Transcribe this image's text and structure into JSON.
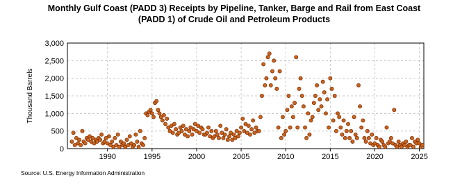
{
  "chart_data": {
    "type": "scatter",
    "title": "Monthly Gulf Coast (PADD 3) Receipts by Pipeline, Tanker, Barge and Rail from East Coast",
    "subtitle": "(PADD 1) of Crude Oil and Petroleum Products",
    "ylabel": "Thousand Barrels",
    "source": "Source: U.S. Energy Information Administration",
    "xlim": [
      1985.5,
      2025.5
    ],
    "xticks": [
      1990,
      1995,
      2000,
      2005,
      2010,
      2015,
      2020,
      2025
    ],
    "ylim": [
      0,
      3000
    ],
    "yticks": [
      {
        "value": 0,
        "label": "0"
      },
      {
        "value": 500,
        "label": "500"
      },
      {
        "value": 1000,
        "label": "1,000"
      },
      {
        "value": 1500,
        "label": "1,500"
      },
      {
        "value": 2000,
        "label": "2,000"
      },
      {
        "value": 2500,
        "label": "2,500"
      },
      {
        "value": 3000,
        "label": "3,000"
      }
    ],
    "grid": true,
    "color": "#c8641e",
    "x": [
      1986,
      1986.17,
      1986.33,
      1986.5,
      1986.67,
      1986.83,
      1987,
      1987.17,
      1987.33,
      1987.5,
      1987.67,
      1987.83,
      1988,
      1988.17,
      1988.33,
      1988.5,
      1988.67,
      1988.83,
      1989,
      1989.17,
      1989.33,
      1989.5,
      1989.67,
      1989.83,
      1990,
      1990.17,
      1990.33,
      1990.5,
      1990.67,
      1990.83,
      1991,
      1991.17,
      1991.33,
      1991.5,
      1991.67,
      1991.83,
      1992,
      1992.17,
      1992.33,
      1992.5,
      1992.67,
      1992.83,
      1993,
      1993.17,
      1993.33,
      1993.5,
      1993.67,
      1993.83,
      1994,
      1994.17,
      1994.33,
      1994.5,
      1994.67,
      1994.83,
      1995,
      1995.17,
      1995.33,
      1995.5,
      1995.67,
      1995.83,
      1996,
      1996.17,
      1996.33,
      1996.5,
      1996.67,
      1996.83,
      1997,
      1997.17,
      1997.33,
      1997.5,
      1997.67,
      1997.83,
      1998,
      1998.17,
      1998.33,
      1998.5,
      1998.67,
      1998.83,
      1999,
      1999.17,
      1999.33,
      1999.5,
      1999.67,
      1999.83,
      2000,
      2000.17,
      2000.33,
      2000.5,
      2000.67,
      2000.83,
      2001,
      2001.17,
      2001.33,
      2001.5,
      2001.67,
      2001.83,
      2002,
      2002.17,
      2002.33,
      2002.5,
      2002.67,
      2002.83,
      2003,
      2003.17,
      2003.33,
      2003.5,
      2003.67,
      2003.83,
      2004,
      2004.17,
      2004.33,
      2004.5,
      2004.67,
      2004.83,
      2005,
      2005.17,
      2005.33,
      2005.5,
      2005.67,
      2005.83,
      2006,
      2006.17,
      2006.33,
      2006.5,
      2006.67,
      2006.83,
      2007,
      2007.17,
      2007.33,
      2007.5,
      2007.67,
      2007.83,
      2008,
      2008.17,
      2008.33,
      2008.5,
      2008.67,
      2008.83,
      2009,
      2009.17,
      2009.33,
      2009.5,
      2009.67,
      2009.83,
      2010,
      2010.17,
      2010.33,
      2010.5,
      2010.67,
      2010.83,
      2011,
      2011.17,
      2011.33,
      2011.5,
      2011.67,
      2011.83,
      2012,
      2012.17,
      2012.33,
      2012.5,
      2012.67,
      2012.83,
      2013,
      2013.17,
      2013.33,
      2013.5,
      2013.67,
      2013.83,
      2014,
      2014.17,
      2014.33,
      2014.5,
      2014.67,
      2014.83,
      2015,
      2015.17,
      2015.33,
      2015.5,
      2015.67,
      2015.83,
      2016,
      2016.17,
      2016.33,
      2016.5,
      2016.67,
      2016.83,
      2017,
      2017.17,
      2017.33,
      2017.5,
      2017.67,
      2017.83,
      2018,
      2018.17,
      2018.33,
      2018.5,
      2018.67,
      2018.83,
      2019,
      2019.17,
      2019.33,
      2019.5,
      2019.67,
      2019.83,
      2020,
      2020.17,
      2020.33,
      2020.5,
      2020.67,
      2020.83,
      2021,
      2021.17,
      2021.33,
      2021.5,
      2021.67,
      2021.83,
      2022,
      2022.17,
      2022.33,
      2022.5,
      2022.67,
      2022.83,
      2023,
      2023.17,
      2023.33,
      2023.5,
      2023.67,
      2023.83,
      2024,
      2024.17,
      2024.33,
      2024.5,
      2024.67,
      2024.83,
      2025,
      2025.17,
      2025.33
    ],
    "values": [
      200,
      450,
      100,
      300,
      150,
      250,
      100,
      500,
      200,
      150,
      300,
      250,
      350,
      200,
      300,
      150,
      250,
      200,
      300,
      250,
      400,
      150,
      200,
      300,
      150,
      350,
      100,
      200,
      50,
      300,
      100,
      400,
      50,
      200,
      100,
      150,
      50,
      250,
      100,
      350,
      150,
      50,
      100,
      400,
      200,
      50,
      500,
      150,
      100,
      300,
      1000,
      950,
      1050,
      1100,
      1000,
      900,
      1300,
      1350,
      1100,
      1000,
      900,
      800,
      950,
      700,
      850,
      600,
      500,
      650,
      450,
      700,
      550,
      400,
      450,
      600,
      500,
      650,
      400,
      550,
      350,
      500,
      600,
      400,
      550,
      700,
      500,
      650,
      450,
      600,
      550,
      400,
      400,
      450,
      600,
      350,
      500,
      300,
      350,
      500,
      400,
      300,
      650,
      450,
      300,
      400,
      550,
      250,
      350,
      450,
      250,
      400,
      300,
      500,
      350,
      450,
      600,
      850,
      500,
      700,
      450,
      650,
      400,
      550,
      800,
      450,
      600,
      500,
      500,
      900,
      1500,
      2400,
      1800,
      2000,
      2600,
      2700,
      1800,
      2200,
      2500,
      2000,
      1700,
      600,
      2200,
      300,
      900,
      400,
      500,
      1100,
      1500,
      600,
      1200,
      900,
      1300,
      2600,
      600,
      1700,
      2000,
      1500,
      1200,
      600,
      300,
      1000,
      400,
      800,
      900,
      1300,
      1500,
      1800,
      1100,
      1400,
      1200,
      1900,
      1600,
      1000,
      1400,
      600,
      2000,
      1700,
      800,
      1500,
      500,
      1000,
      900,
      600,
      400,
      800,
      300,
      500,
      700,
      300,
      500,
      200,
      900,
      400,
      300,
      1800,
      1200,
      600,
      800,
      300,
      200,
      500,
      300,
      150,
      400,
      100,
      150,
      300,
      100,
      50,
      250,
      200,
      100,
      50,
      600,
      150,
      200,
      300,
      150,
      1100,
      100,
      50,
      200,
      100,
      50,
      150,
      100,
      200,
      50,
      100,
      100,
      300,
      50,
      200,
      150,
      250,
      150,
      50,
      100
    ]
  }
}
